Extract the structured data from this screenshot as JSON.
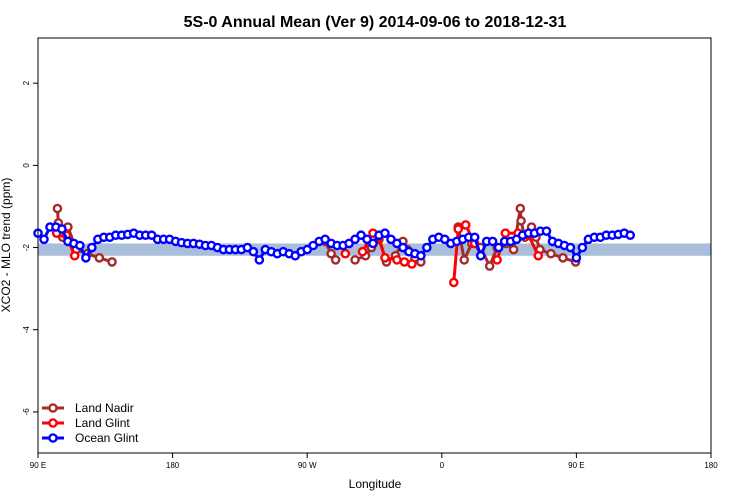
{
  "chart_data": {
    "type": "line",
    "title": "5S-0 Annual Mean (Ver 9)   2014-09-06 to 2018-12-31",
    "xlabel": "Longitude",
    "ylabel": "XCO2 - MLO trend (ppm)",
    "xlim": [
      90,
      450
    ],
    "ylim": [
      -7,
      3.1
    ],
    "x_ticks": [
      {
        "value": 90,
        "label": "90 E"
      },
      {
        "value": 180,
        "label": "180"
      },
      {
        "value": 270,
        "label": "90 W"
      },
      {
        "value": 360,
        "label": "0"
      },
      {
        "value": 450,
        "label": "90 E"
      },
      {
        "value": 540,
        "label": "180"
      }
    ],
    "y_ticks": [
      {
        "value": 2,
        "label": "2"
      },
      {
        "value": 0,
        "label": "0"
      },
      {
        "value": -2,
        "label": "-2"
      },
      {
        "value": -4,
        "label": "-4"
      },
      {
        "value": -6,
        "label": "-6"
      }
    ],
    "x_range_display": [
      90,
      540
    ],
    "band": {
      "y_low": -2.2,
      "y_high": -1.9,
      "color": "#a9bedb"
    },
    "legend_position": "bottom-left",
    "series": [
      {
        "name": "Land Nadir",
        "color": "#a52a2a",
        "points": [
          [
            103,
            -1.05
          ],
          [
            103.6,
            -1.4
          ],
          [
            106.5,
            -1.75
          ],
          [
            110,
            -1.5
          ],
          [
            115.6,
            -2.05
          ],
          [
            123,
            -2.15
          ],
          [
            131,
            -2.25
          ],
          [
            139.5,
            -2.35
          ],
          [
            282,
            -1.85
          ],
          [
            286,
            -2.15
          ],
          [
            289,
            -2.3
          ],
          [
            302,
            -2.3
          ],
          [
            309,
            -2.2
          ],
          [
            313,
            -2.0
          ],
          [
            318,
            -1.8
          ],
          [
            323,
            -2.35
          ],
          [
            329,
            -2.2
          ],
          [
            334,
            -1.85
          ],
          [
            337,
            -2.05
          ],
          [
            342,
            -2.25
          ],
          [
            346,
            -2.35
          ],
          [
            371,
            -1.5
          ],
          [
            375,
            -2.3
          ],
          [
            380,
            -1.9
          ],
          [
            386,
            -2.0
          ],
          [
            392,
            -2.45
          ],
          [
            397,
            -2.0
          ],
          [
            403,
            -1.9
          ],
          [
            408,
            -2.05
          ],
          [
            412.5,
            -1.05
          ],
          [
            413,
            -1.35
          ],
          [
            415.5,
            -1.75
          ],
          [
            420,
            -1.5
          ],
          [
            423,
            -1.75
          ],
          [
            425.6,
            -2.05
          ],
          [
            433,
            -2.15
          ],
          [
            441,
            -2.25
          ],
          [
            449.5,
            -2.35
          ]
        ]
      },
      {
        "name": "Land Glint",
        "color": "#ff0000",
        "points": [
          [
            102.5,
            -1.65
          ],
          [
            107,
            -1.65
          ],
          [
            109,
            -1.7
          ],
          [
            114.5,
            -2.2
          ],
          [
            295.5,
            -2.15
          ],
          [
            307,
            -2.1
          ],
          [
            314,
            -1.65
          ],
          [
            318,
            -1.75
          ],
          [
            322,
            -2.25
          ],
          [
            330,
            -2.3
          ],
          [
            335,
            -2.35
          ],
          [
            340,
            -2.4
          ],
          [
            368,
            -2.85
          ],
          [
            371,
            -1.55
          ],
          [
            376,
            -1.45
          ],
          [
            382,
            -1.9
          ],
          [
            397,
            -2.3
          ],
          [
            402.5,
            -1.65
          ],
          [
            411,
            -1.65
          ],
          [
            418,
            -1.7
          ],
          [
            424.5,
            -2.2
          ]
        ]
      },
      {
        "name": "Ocean Glint",
        "color": "#0000ff",
        "points": [
          [
            90,
            -1.65
          ],
          [
            94,
            -1.8
          ],
          [
            98,
            -1.5
          ],
          [
            102,
            -1.5
          ],
          [
            106,
            -1.55
          ],
          [
            110,
            -1.85
          ],
          [
            114,
            -1.9
          ],
          [
            118,
            -1.95
          ],
          [
            122,
            -2.25
          ],
          [
            126,
            -2.0
          ],
          [
            130,
            -1.8
          ],
          [
            134,
            -1.75
          ],
          [
            138,
            -1.75
          ],
          [
            142,
            -1.7
          ],
          [
            146,
            -1.7
          ],
          [
            150,
            -1.68
          ],
          [
            154,
            -1.65
          ],
          [
            158,
            -1.7
          ],
          [
            162,
            -1.7
          ],
          [
            166,
            -1.7
          ],
          [
            170,
            -1.8
          ],
          [
            174,
            -1.8
          ],
          [
            178,
            -1.8
          ],
          [
            182,
            -1.85
          ],
          [
            186,
            -1.88
          ],
          [
            190,
            -1.9
          ],
          [
            194,
            -1.9
          ],
          [
            198,
            -1.92
          ],
          [
            202,
            -1.95
          ],
          [
            206,
            -1.95
          ],
          [
            210,
            -2.0
          ],
          [
            214,
            -2.05
          ],
          [
            218,
            -2.05
          ],
          [
            222,
            -2.05
          ],
          [
            226,
            -2.05
          ],
          [
            230,
            -2.0
          ],
          [
            234,
            -2.1
          ],
          [
            238,
            -2.3
          ],
          [
            242,
            -2.05
          ],
          [
            246,
            -2.1
          ],
          [
            250,
            -2.15
          ],
          [
            254,
            -2.1
          ],
          [
            258,
            -2.15
          ],
          [
            262,
            -2.2
          ],
          [
            266,
            -2.1
          ],
          [
            270,
            -2.05
          ],
          [
            274,
            -1.95
          ],
          [
            278,
            -1.85
          ],
          [
            282,
            -1.8
          ],
          [
            286,
            -1.9
          ],
          [
            290,
            -1.95
          ],
          [
            294,
            -1.95
          ],
          [
            298,
            -1.9
          ],
          [
            302,
            -1.8
          ],
          [
            306,
            -1.7
          ],
          [
            310,
            -1.8
          ],
          [
            314,
            -1.9
          ],
          [
            318,
            -1.7
          ],
          [
            322,
            -1.65
          ],
          [
            326,
            -1.8
          ],
          [
            330,
            -1.9
          ],
          [
            334,
            -2.0
          ],
          [
            338,
            -2.1
          ],
          [
            342,
            -2.15
          ],
          [
            346,
            -2.2
          ],
          [
            350,
            -2.0
          ],
          [
            354,
            -1.8
          ],
          [
            358,
            -1.75
          ],
          [
            362,
            -1.8
          ],
          [
            366,
            -1.9
          ],
          [
            370,
            -1.85
          ],
          [
            374,
            -1.8
          ],
          [
            378,
            -1.75
          ],
          [
            382,
            -1.75
          ],
          [
            386,
            -2.2
          ],
          [
            390,
            -1.85
          ],
          [
            394,
            -1.85
          ],
          [
            398,
            -2.0
          ],
          [
            402,
            -1.85
          ],
          [
            406,
            -1.85
          ],
          [
            410,
            -1.8
          ],
          [
            414,
            -1.7
          ],
          [
            418,
            -1.65
          ],
          [
            422,
            -1.65
          ],
          [
            426,
            -1.6
          ],
          [
            430,
            -1.6
          ],
          [
            434,
            -1.85
          ],
          [
            438,
            -1.9
          ],
          [
            442,
            -1.95
          ],
          [
            446,
            -2.0
          ],
          [
            450,
            -2.25
          ],
          [
            454,
            -2.0
          ],
          [
            458,
            -1.8
          ],
          [
            462,
            -1.75
          ],
          [
            466,
            -1.75
          ],
          [
            470,
            -1.7
          ],
          [
            474,
            -1.7
          ],
          [
            478,
            -1.68
          ],
          [
            482,
            -1.65
          ],
          [
            486,
            -1.7
          ]
        ]
      }
    ]
  },
  "extra_ocean": [
    [
      438,
      -2.25
    ],
    [
      442,
      -2.0
    ],
    [
      446,
      -1.85
    ],
    [
      449,
      -1.8
    ]
  ]
}
